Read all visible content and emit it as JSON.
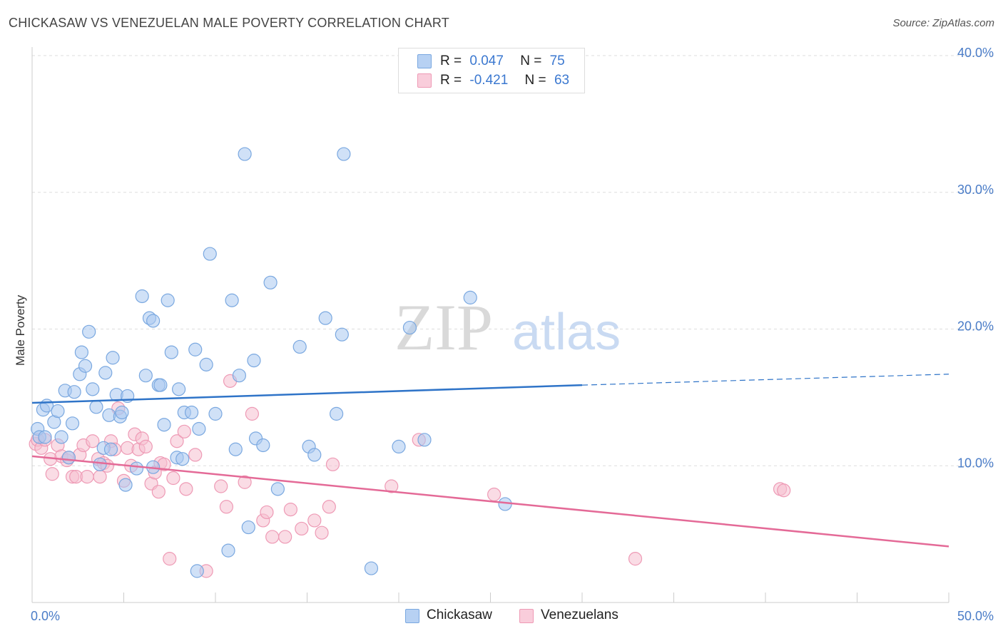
{
  "header": {
    "title": "CHICKASAW VS VENEZUELAN MALE POVERTY CORRELATION CHART",
    "source": "Source: ZipAtlas.com"
  },
  "watermark": {
    "zip": "ZIP",
    "atlas": "atlas"
  },
  "legend": {
    "rows": [
      {
        "r_label": "R =",
        "r_value": "0.047",
        "n_label": "N =",
        "n_value": "75"
      },
      {
        "r_label": "R =",
        "r_value": "-0.421",
        "n_label": "N =",
        "n_value": "63"
      }
    ]
  },
  "bottom_legend": {
    "chickasaw": "Chickasaw",
    "venezuelans": "Venezuelans"
  },
  "colors": {
    "chickasaw_fill": "#a9c8f0",
    "chickasaw_stroke": "#7aa8e0",
    "chickasaw_line": "#2f74c8",
    "venezuelan_fill": "#f6bfd0",
    "venezuelan_stroke": "#ee9ab5",
    "venezuelan_line": "#e46a97",
    "tick_text": "#4a7cc7"
  },
  "chart_data": {
    "type": "scatter",
    "title": "CHICKASAW VS VENEZUELAN MALE POVERTY CORRELATION CHART",
    "xlabel": "",
    "ylabel": "Male Poverty",
    "xlim": [
      0,
      50
    ],
    "ylim": [
      0,
      40
    ],
    "x_tick_labels": [
      "0.0%",
      "50.0%"
    ],
    "y_tick_labels": [
      "10.0%",
      "20.0%",
      "30.0%",
      "40.0%"
    ],
    "y_tick_values": [
      10,
      20,
      30,
      40
    ],
    "grid": true,
    "legend_position": "top-center",
    "series": [
      {
        "name": "Chickasaw",
        "r": 0.047,
        "n": 75,
        "trend": {
          "x": [
            0,
            30,
            50
          ],
          "y": [
            14.6,
            15.9,
            16.7
          ],
          "solid_until": 30
        },
        "points": [
          [
            0.3,
            12.7
          ],
          [
            0.4,
            12.1
          ],
          [
            0.6,
            14.1
          ],
          [
            0.7,
            12.1
          ],
          [
            0.8,
            14.4
          ],
          [
            1.2,
            13.2
          ],
          [
            1.4,
            14.0
          ],
          [
            1.6,
            12.1
          ],
          [
            1.8,
            15.5
          ],
          [
            2.0,
            10.6
          ],
          [
            2.2,
            13.1
          ],
          [
            2.3,
            15.4
          ],
          [
            2.6,
            16.7
          ],
          [
            2.7,
            18.3
          ],
          [
            2.9,
            17.3
          ],
          [
            3.1,
            19.8
          ],
          [
            3.3,
            15.6
          ],
          [
            3.5,
            14.3
          ],
          [
            3.7,
            10.1
          ],
          [
            3.9,
            11.3
          ],
          [
            4.0,
            16.8
          ],
          [
            4.2,
            13.7
          ],
          [
            4.4,
            17.9
          ],
          [
            4.6,
            15.2
          ],
          [
            4.8,
            13.6
          ],
          [
            4.9,
            13.9
          ],
          [
            5.1,
            8.6
          ],
          [
            5.2,
            15.1
          ],
          [
            5.7,
            9.8
          ],
          [
            6.0,
            22.4
          ],
          [
            6.2,
            16.6
          ],
          [
            6.4,
            20.8
          ],
          [
            6.6,
            20.6
          ],
          [
            6.9,
            15.9
          ],
          [
            7.0,
            15.9
          ],
          [
            7.2,
            13.0
          ],
          [
            7.4,
            22.1
          ],
          [
            7.6,
            18.3
          ],
          [
            7.9,
            10.6
          ],
          [
            8.0,
            15.6
          ],
          [
            8.2,
            10.5
          ],
          [
            8.3,
            13.9
          ],
          [
            8.7,
            13.9
          ],
          [
            8.9,
            18.5
          ],
          [
            9.1,
            12.7
          ],
          [
            9.5,
            17.4
          ],
          [
            9.7,
            25.5
          ],
          [
            10.0,
            13.8
          ],
          [
            10.7,
            3.8
          ],
          [
            10.9,
            22.1
          ],
          [
            11.1,
            11.2
          ],
          [
            11.3,
            16.6
          ],
          [
            11.6,
            32.8
          ],
          [
            11.8,
            5.5
          ],
          [
            12.1,
            17.7
          ],
          [
            12.2,
            12.0
          ],
          [
            12.6,
            11.5
          ],
          [
            13.0,
            23.4
          ],
          [
            13.4,
            8.3
          ],
          [
            14.6,
            18.7
          ],
          [
            15.1,
            11.4
          ],
          [
            15.4,
            10.8
          ],
          [
            16.0,
            20.8
          ],
          [
            16.6,
            13.8
          ],
          [
            16.9,
            19.6
          ],
          [
            17.0,
            32.8
          ],
          [
            18.5,
            2.5
          ],
          [
            20.0,
            11.4
          ],
          [
            20.6,
            20.1
          ],
          [
            21.4,
            11.9
          ],
          [
            23.9,
            22.3
          ],
          [
            25.8,
            7.2
          ],
          [
            9.0,
            2.3
          ],
          [
            6.6,
            9.9
          ],
          [
            4.3,
            11.2
          ]
        ]
      },
      {
        "name": "Venezuelans",
        "r": -0.421,
        "n": 63,
        "trend": {
          "x": [
            0,
            50
          ],
          "y": [
            10.7,
            4.1
          ]
        },
        "points": [
          [
            0.2,
            11.6
          ],
          [
            0.3,
            11.9
          ],
          [
            0.5,
            11.3
          ],
          [
            0.7,
            11.9
          ],
          [
            1.0,
            10.5
          ],
          [
            1.1,
            9.4
          ],
          [
            1.4,
            11.5
          ],
          [
            1.6,
            10.7
          ],
          [
            1.9,
            10.4
          ],
          [
            2.0,
            10.6
          ],
          [
            2.2,
            9.2
          ],
          [
            2.4,
            9.2
          ],
          [
            2.6,
            10.8
          ],
          [
            2.8,
            11.5
          ],
          [
            3.0,
            9.2
          ],
          [
            3.3,
            11.8
          ],
          [
            3.6,
            10.5
          ],
          [
            3.7,
            9.2
          ],
          [
            3.9,
            10.2
          ],
          [
            4.1,
            10.0
          ],
          [
            4.3,
            11.8
          ],
          [
            4.5,
            11.2
          ],
          [
            4.7,
            14.2
          ],
          [
            5.0,
            8.9
          ],
          [
            5.2,
            11.3
          ],
          [
            5.4,
            10.0
          ],
          [
            5.6,
            12.3
          ],
          [
            5.8,
            11.2
          ],
          [
            6.0,
            12.0
          ],
          [
            6.2,
            11.4
          ],
          [
            6.5,
            8.7
          ],
          [
            6.7,
            9.5
          ],
          [
            6.9,
            8.1
          ],
          [
            7.0,
            10.2
          ],
          [
            7.2,
            10.1
          ],
          [
            7.5,
            3.2
          ],
          [
            7.7,
            9.1
          ],
          [
            7.9,
            11.8
          ],
          [
            8.3,
            12.5
          ],
          [
            8.4,
            8.3
          ],
          [
            8.9,
            10.8
          ],
          [
            9.5,
            2.3
          ],
          [
            10.3,
            8.5
          ],
          [
            10.6,
            7.0
          ],
          [
            10.8,
            16.2
          ],
          [
            11.6,
            8.8
          ],
          [
            12.0,
            13.8
          ],
          [
            12.6,
            6.0
          ],
          [
            12.8,
            6.6
          ],
          [
            13.1,
            4.8
          ],
          [
            13.8,
            4.8
          ],
          [
            14.1,
            6.8
          ],
          [
            14.7,
            5.4
          ],
          [
            15.4,
            6.0
          ],
          [
            15.8,
            5.1
          ],
          [
            16.2,
            7.0
          ],
          [
            16.4,
            10.1
          ],
          [
            19.6,
            8.5
          ],
          [
            21.1,
            11.9
          ],
          [
            25.2,
            7.9
          ],
          [
            32.9,
            3.2
          ],
          [
            40.8,
            8.3
          ],
          [
            41.0,
            8.2
          ]
        ]
      }
    ]
  }
}
